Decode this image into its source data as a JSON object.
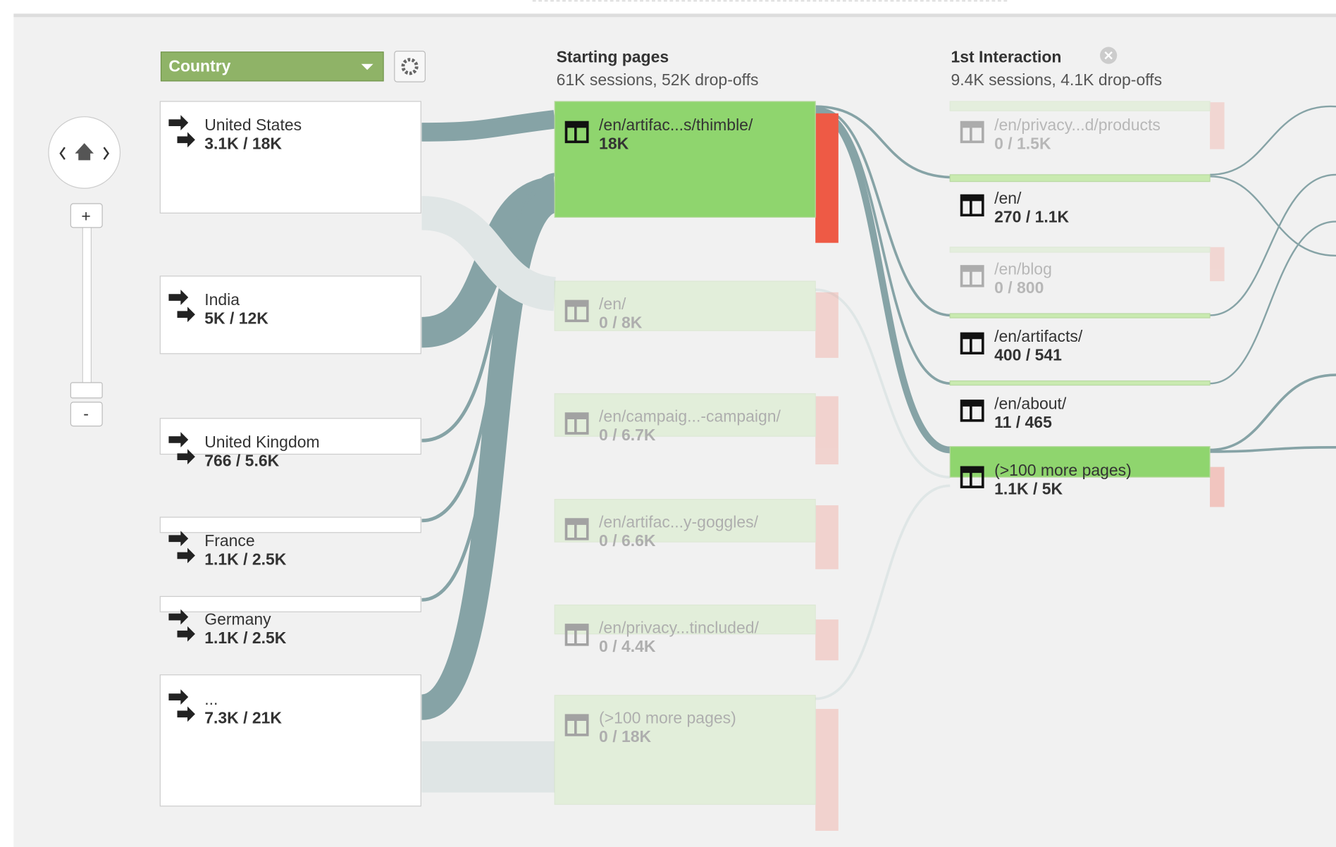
{
  "dimension": "Country",
  "zoom": {
    "in": "+",
    "out": "-"
  },
  "countries": [
    {
      "name": "United States",
      "stats": "3.1K / 18K"
    },
    {
      "name": "India",
      "stats": "5K / 12K"
    },
    {
      "name": "United Kingdom",
      "stats": "766 / 5.6K"
    },
    {
      "name": "France",
      "stats": "1.1K / 2.5K"
    },
    {
      "name": "Germany",
      "stats": "1.1K / 2.5K"
    },
    {
      "name": "...",
      "stats": "7.3K / 21K"
    }
  ],
  "columns": [
    {
      "title": "Starting pages",
      "subtitle": "61K sessions, 52K drop-offs",
      "nodes": [
        {
          "label": "/en/artifac...s/thimble/",
          "stats": "18K"
        },
        {
          "label": "/en/",
          "stats": "0 / 8K"
        },
        {
          "label": "/en/campaig...-campaign/",
          "stats": "0 / 6.7K"
        },
        {
          "label": "/en/artifac...y-goggles/",
          "stats": "0 / 6.6K"
        },
        {
          "label": "/en/privacy...tincluded/",
          "stats": "0 / 4.4K"
        },
        {
          "label": "(>100 more pages)",
          "stats": "0 / 18K"
        }
      ]
    },
    {
      "title": "1st Interaction",
      "subtitle": "9.4K sessions, 4.1K drop-offs",
      "nodes": [
        {
          "label": "/en/privacy...d/products",
          "stats": "0 / 1.5K"
        },
        {
          "label": "/en/",
          "stats": "270 / 1.1K"
        },
        {
          "label": "/en/blog",
          "stats": "0 / 800"
        },
        {
          "label": "/en/artifacts/",
          "stats": "400 / 541"
        },
        {
          "label": "/en/about/",
          "stats": "11 / 465"
        },
        {
          "label": "(>100 more pages)",
          "stats": "1.1K / 5K"
        }
      ]
    }
  ]
}
